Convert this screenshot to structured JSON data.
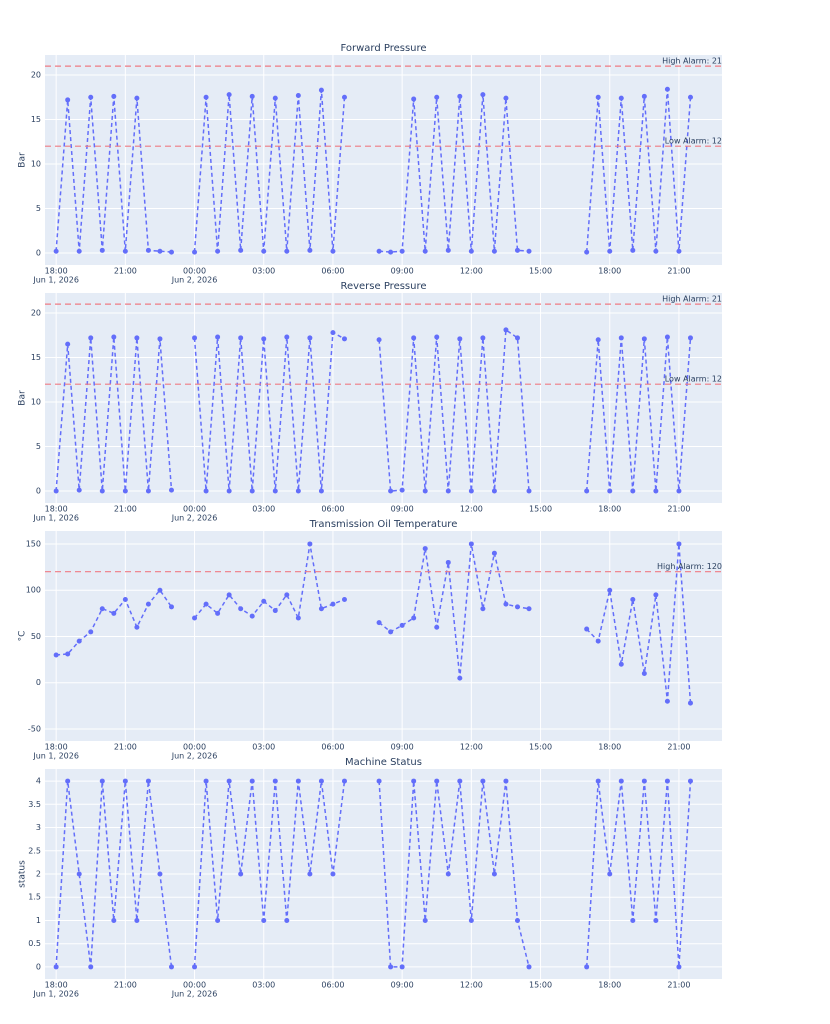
{
  "chart_data": [
    {
      "type": "line",
      "title": "Forward Pressure",
      "ylabel": "Bar",
      "color": "#636efa",
      "grid": true,
      "x": [
        "2026-06-01 18:00",
        "2026-06-01 18:30",
        "2026-06-01 19:00",
        "2026-06-01 19:30",
        "2026-06-01 20:00",
        "2026-06-01 20:30",
        "2026-06-01 21:00",
        "2026-06-01 21:30",
        "2026-06-01 22:00",
        "2026-06-01 22:30",
        "2026-06-01 23:00",
        "2026-06-01 23:30",
        "2026-06-02 00:00",
        "2026-06-02 00:30",
        "2026-06-02 01:00",
        "2026-06-02 01:30",
        "2026-06-02 02:00",
        "2026-06-02 02:30",
        "2026-06-02 03:00",
        "2026-06-02 03:30",
        "2026-06-02 04:00",
        "2026-06-02 04:30",
        "2026-06-02 05:00",
        "2026-06-02 05:30",
        "2026-06-02 06:00",
        "2026-06-02 06:30",
        "2026-06-02 07:00",
        "2026-06-02 07:30",
        "2026-06-02 08:00",
        "2026-06-02 08:30",
        "2026-06-02 09:00",
        "2026-06-02 09:30",
        "2026-06-02 10:00",
        "2026-06-02 10:30",
        "2026-06-02 11:00",
        "2026-06-02 11:30",
        "2026-06-02 12:00",
        "2026-06-02 12:30",
        "2026-06-02 13:00",
        "2026-06-02 13:30",
        "2026-06-02 14:00",
        "2026-06-02 14:30",
        "2026-06-02 15:00",
        "2026-06-02 15:30",
        "2026-06-02 16:00",
        "2026-06-02 16:30",
        "2026-06-02 17:00",
        "2026-06-02 17:30",
        "2026-06-02 18:00",
        "2026-06-02 18:30",
        "2026-06-02 19:00",
        "2026-06-02 19:30",
        "2026-06-02 20:00",
        "2026-06-02 20:30",
        "2026-06-02 21:00",
        "2026-06-02 21:30"
      ],
      "values": [
        0.2,
        17.2,
        0.2,
        17.5,
        0.3,
        17.6,
        0.2,
        17.4,
        0.3,
        0.2,
        0.1,
        null,
        0.1,
        17.5,
        0.2,
        17.8,
        0.3,
        17.6,
        0.2,
        17.4,
        0.2,
        17.7,
        0.3,
        18.3,
        0.2,
        17.5,
        null,
        null,
        0.2,
        0.1,
        0.2,
        17.3,
        0.2,
        17.5,
        0.3,
        17.6,
        0.2,
        17.8,
        0.2,
        17.4,
        0.3,
        0.2,
        null,
        null,
        null,
        null,
        0.1,
        17.5,
        0.2,
        17.4,
        0.3,
        17.6,
        0.2,
        18.4,
        0.2,
        17.5
      ],
      "xlim": [
        "2026-06-01 17:31",
        "2026-06-02 22:52"
      ],
      "xticks": [
        {
          "value": "2026-06-01 18:00",
          "label": "18:00"
        },
        {
          "value": "2026-06-01 21:00",
          "label": "21:00"
        },
        {
          "value": "2026-06-02 00:00",
          "label": "00:00"
        },
        {
          "value": "2026-06-02 03:00",
          "label": "03:00"
        },
        {
          "value": "2026-06-02 06:00",
          "label": "06:00"
        },
        {
          "value": "2026-06-02 09:00",
          "label": "09:00"
        },
        {
          "value": "2026-06-02 12:00",
          "label": "12:00"
        },
        {
          "value": "2026-06-02 15:00",
          "label": "15:00"
        },
        {
          "value": "2026-06-02 18:00",
          "label": "18:00"
        },
        {
          "value": "2026-06-02 21:00",
          "label": "21:00"
        }
      ],
      "x_date_labels": [
        {
          "value": "2026-06-01 18:00",
          "label": "Jun 1, 2026"
        },
        {
          "value": "2026-06-02 00:00",
          "label": "Jun 2, 2026"
        }
      ],
      "ylim": [
        -1.35,
        22.25
      ],
      "yticks": [
        0,
        5,
        10,
        15,
        20
      ],
      "alarms": [
        {
          "value": 21,
          "label": "High Alarm: 21"
        },
        {
          "value": 12,
          "label": "Low Alarm: 12"
        }
      ],
      "alarm_color": "#ef7b84"
    },
    {
      "type": "line",
      "title": "Reverse Pressure",
      "ylabel": "Bar",
      "color": "#636efa",
      "grid": true,
      "x": [
        "2026-06-01 18:00",
        "2026-06-01 18:30",
        "2026-06-01 19:00",
        "2026-06-01 19:30",
        "2026-06-01 20:00",
        "2026-06-01 20:30",
        "2026-06-01 21:00",
        "2026-06-01 21:30",
        "2026-06-01 22:00",
        "2026-06-01 22:30",
        "2026-06-01 23:00",
        "2026-06-01 23:30",
        "2026-06-02 00:00",
        "2026-06-02 00:30",
        "2026-06-02 01:00",
        "2026-06-02 01:30",
        "2026-06-02 02:00",
        "2026-06-02 02:30",
        "2026-06-02 03:00",
        "2026-06-02 03:30",
        "2026-06-02 04:00",
        "2026-06-02 04:30",
        "2026-06-02 05:00",
        "2026-06-02 05:30",
        "2026-06-02 06:00",
        "2026-06-02 06:30",
        "2026-06-02 07:00",
        "2026-06-02 07:30",
        "2026-06-02 08:00",
        "2026-06-02 08:30",
        "2026-06-02 09:00",
        "2026-06-02 09:30",
        "2026-06-02 10:00",
        "2026-06-02 10:30",
        "2026-06-02 11:00",
        "2026-06-02 11:30",
        "2026-06-02 12:00",
        "2026-06-02 12:30",
        "2026-06-02 13:00",
        "2026-06-02 13:30",
        "2026-06-02 14:00",
        "2026-06-02 14:30",
        "2026-06-02 15:00",
        "2026-06-02 15:30",
        "2026-06-02 16:00",
        "2026-06-02 16:30",
        "2026-06-02 17:00",
        "2026-06-02 17:30",
        "2026-06-02 18:00",
        "2026-06-02 18:30",
        "2026-06-02 19:00",
        "2026-06-02 19:30",
        "2026-06-02 20:00",
        "2026-06-02 20:30",
        "2026-06-02 21:00",
        "2026-06-02 21:30"
      ],
      "values": [
        0,
        16.5,
        0.1,
        17.2,
        0,
        17.3,
        0,
        17.2,
        0,
        17.1,
        0.1,
        null,
        17.2,
        0,
        17.3,
        0,
        17.2,
        0,
        17.1,
        0,
        17.3,
        0,
        17.2,
        0,
        17.8,
        17.1,
        null,
        null,
        17.0,
        0,
        0.1,
        17.2,
        0,
        17.3,
        0,
        17.1,
        0,
        17.2,
        0,
        18.1,
        17.2,
        0,
        null,
        null,
        null,
        null,
        0,
        17.0,
        0,
        17.2,
        0,
        17.1,
        0,
        17.3,
        0,
        17.2
      ],
      "xlim": [
        "2026-06-01 17:31",
        "2026-06-02 22:52"
      ],
      "xticks": [
        {
          "value": "2026-06-01 18:00",
          "label": "18:00"
        },
        {
          "value": "2026-06-01 21:00",
          "label": "21:00"
        },
        {
          "value": "2026-06-02 00:00",
          "label": "00:00"
        },
        {
          "value": "2026-06-02 03:00",
          "label": "03:00"
        },
        {
          "value": "2026-06-02 06:00",
          "label": "06:00"
        },
        {
          "value": "2026-06-02 09:00",
          "label": "09:00"
        },
        {
          "value": "2026-06-02 12:00",
          "label": "12:00"
        },
        {
          "value": "2026-06-02 15:00",
          "label": "15:00"
        },
        {
          "value": "2026-06-02 18:00",
          "label": "18:00"
        },
        {
          "value": "2026-06-02 21:00",
          "label": "21:00"
        }
      ],
      "x_date_labels": [
        {
          "value": "2026-06-01 18:00",
          "label": "Jun 1, 2026"
        },
        {
          "value": "2026-06-02 00:00",
          "label": "Jun 2, 2026"
        }
      ],
      "ylim": [
        -1.35,
        22.25
      ],
      "yticks": [
        0,
        5,
        10,
        15,
        20
      ],
      "alarms": [
        {
          "value": 21,
          "label": "High Alarm: 21"
        },
        {
          "value": 12,
          "label": "Low Alarm: 12"
        }
      ],
      "alarm_color": "#ef7b84"
    },
    {
      "type": "line",
      "title": "Transmission Oil Temperature",
      "ylabel": "°C",
      "color": "#636efa",
      "grid": true,
      "x": [
        "2026-06-01 18:00",
        "2026-06-01 18:30",
        "2026-06-01 19:00",
        "2026-06-01 19:30",
        "2026-06-01 20:00",
        "2026-06-01 20:30",
        "2026-06-01 21:00",
        "2026-06-01 21:30",
        "2026-06-01 22:00",
        "2026-06-01 22:30",
        "2026-06-01 23:00",
        "2026-06-01 23:30",
        "2026-06-02 00:00",
        "2026-06-02 00:30",
        "2026-06-02 01:00",
        "2026-06-02 01:30",
        "2026-06-02 02:00",
        "2026-06-02 02:30",
        "2026-06-02 03:00",
        "2026-06-02 03:30",
        "2026-06-02 04:00",
        "2026-06-02 04:30",
        "2026-06-02 05:00",
        "2026-06-02 05:30",
        "2026-06-02 06:00",
        "2026-06-02 06:30",
        "2026-06-02 07:00",
        "2026-06-02 07:30",
        "2026-06-02 08:00",
        "2026-06-02 08:30",
        "2026-06-02 09:00",
        "2026-06-02 09:30",
        "2026-06-02 10:00",
        "2026-06-02 10:30",
        "2026-06-02 11:00",
        "2026-06-02 11:30",
        "2026-06-02 12:00",
        "2026-06-02 12:30",
        "2026-06-02 13:00",
        "2026-06-02 13:30",
        "2026-06-02 14:00",
        "2026-06-02 14:30",
        "2026-06-02 15:00",
        "2026-06-02 15:30",
        "2026-06-02 16:00",
        "2026-06-02 16:30",
        "2026-06-02 17:00",
        "2026-06-02 17:30",
        "2026-06-02 18:00",
        "2026-06-02 18:30",
        "2026-06-02 19:00",
        "2026-06-02 19:30",
        "2026-06-02 20:00",
        "2026-06-02 20:30",
        "2026-06-02 21:00",
        "2026-06-02 21:30"
      ],
      "values": [
        30,
        31,
        45,
        55,
        80,
        75,
        90,
        60,
        85,
        100,
        82,
        null,
        70,
        85,
        75,
        95,
        80,
        72,
        88,
        78,
        95,
        70,
        150,
        80,
        85,
        90,
        null,
        null,
        65,
        55,
        62,
        70,
        145,
        60,
        130,
        5,
        150,
        80,
        140,
        85,
        82,
        80,
        null,
        null,
        null,
        null,
        58,
        45,
        100,
        20,
        90,
        10,
        95,
        -20,
        150,
        -22
      ],
      "xlim": [
        "2026-06-01 17:31",
        "2026-06-02 22:52"
      ],
      "xticks": [
        {
          "value": "2026-06-01 18:00",
          "label": "18:00"
        },
        {
          "value": "2026-06-01 21:00",
          "label": "21:00"
        },
        {
          "value": "2026-06-02 00:00",
          "label": "00:00"
        },
        {
          "value": "2026-06-02 03:00",
          "label": "03:00"
        },
        {
          "value": "2026-06-02 06:00",
          "label": "06:00"
        },
        {
          "value": "2026-06-02 09:00",
          "label": "09:00"
        },
        {
          "value": "2026-06-02 12:00",
          "label": "12:00"
        },
        {
          "value": "2026-06-02 15:00",
          "label": "15:00"
        },
        {
          "value": "2026-06-02 18:00",
          "label": "18:00"
        },
        {
          "value": "2026-06-02 21:00",
          "label": "21:00"
        }
      ],
      "x_date_labels": [
        {
          "value": "2026-06-01 18:00",
          "label": "Jun 1, 2026"
        },
        {
          "value": "2026-06-02 00:00",
          "label": "Jun 2, 2026"
        }
      ],
      "ylim": [
        -63,
        164
      ],
      "yticks": [
        -50,
        0,
        50,
        100,
        150
      ],
      "alarms": [
        {
          "value": 120,
          "label": "High Alarm: 120"
        }
      ],
      "alarm_color": "#ef7b84"
    },
    {
      "type": "line",
      "title": "Machine Status",
      "ylabel": "status",
      "color": "#636efa",
      "grid": true,
      "x": [
        "2026-06-01 18:00",
        "2026-06-01 18:30",
        "2026-06-01 19:00",
        "2026-06-01 19:30",
        "2026-06-01 20:00",
        "2026-06-01 20:30",
        "2026-06-01 21:00",
        "2026-06-01 21:30",
        "2026-06-01 22:00",
        "2026-06-01 22:30",
        "2026-06-01 23:00",
        "2026-06-01 23:30",
        "2026-06-02 00:00",
        "2026-06-02 00:30",
        "2026-06-02 01:00",
        "2026-06-02 01:30",
        "2026-06-02 02:00",
        "2026-06-02 02:30",
        "2026-06-02 03:00",
        "2026-06-02 03:30",
        "2026-06-02 04:00",
        "2026-06-02 04:30",
        "2026-06-02 05:00",
        "2026-06-02 05:30",
        "2026-06-02 06:00",
        "2026-06-02 06:30",
        "2026-06-02 07:00",
        "2026-06-02 07:30",
        "2026-06-02 08:00",
        "2026-06-02 08:30",
        "2026-06-02 09:00",
        "2026-06-02 09:30",
        "2026-06-02 10:00",
        "2026-06-02 10:30",
        "2026-06-02 11:00",
        "2026-06-02 11:30",
        "2026-06-02 12:00",
        "2026-06-02 12:30",
        "2026-06-02 13:00",
        "2026-06-02 13:30",
        "2026-06-02 14:00",
        "2026-06-02 14:30",
        "2026-06-02 15:00",
        "2026-06-02 15:30",
        "2026-06-02 16:00",
        "2026-06-02 16:30",
        "2026-06-02 17:00",
        "2026-06-02 17:30",
        "2026-06-02 18:00",
        "2026-06-02 18:30",
        "2026-06-02 19:00",
        "2026-06-02 19:30",
        "2026-06-02 20:00",
        "2026-06-02 20:30",
        "2026-06-02 21:00",
        "2026-06-02 21:30"
      ],
      "values": [
        0,
        4,
        2,
        0,
        4,
        1,
        4,
        1,
        4,
        2,
        0,
        null,
        0,
        4,
        1,
        4,
        2,
        4,
        1,
        4,
        1,
        4,
        2,
        4,
        2,
        4,
        null,
        null,
        4,
        0,
        0,
        4,
        1,
        4,
        2,
        4,
        1,
        4,
        2,
        4,
        1,
        0,
        null,
        null,
        null,
        null,
        0,
        4,
        2,
        4,
        1,
        4,
        1,
        4,
        0,
        4
      ],
      "xlim": [
        "2026-06-01 17:31",
        "2026-06-02 22:52"
      ],
      "xticks": [
        {
          "value": "2026-06-01 18:00",
          "label": "18:00"
        },
        {
          "value": "2026-06-01 21:00",
          "label": "21:00"
        },
        {
          "value": "2026-06-02 00:00",
          "label": "00:00"
        },
        {
          "value": "2026-06-02 03:00",
          "label": "03:00"
        },
        {
          "value": "2026-06-02 06:00",
          "label": "06:00"
        },
        {
          "value": "2026-06-02 09:00",
          "label": "09:00"
        },
        {
          "value": "2026-06-02 12:00",
          "label": "12:00"
        },
        {
          "value": "2026-06-02 15:00",
          "label": "15:00"
        },
        {
          "value": "2026-06-02 18:00",
          "label": "18:00"
        },
        {
          "value": "2026-06-02 21:00",
          "label": "21:00"
        }
      ],
      "x_date_labels": [
        {
          "value": "2026-06-01 18:00",
          "label": "Jun 1, 2026"
        },
        {
          "value": "2026-06-02 00:00",
          "label": "Jun 2, 2026"
        }
      ],
      "ylim": [
        -0.26,
        4.26
      ],
      "yticks": [
        0,
        0.5,
        1,
        1.5,
        2,
        2.5,
        3,
        3.5,
        4
      ],
      "alarms": [],
      "alarm_color": "#ef7b84"
    }
  ]
}
